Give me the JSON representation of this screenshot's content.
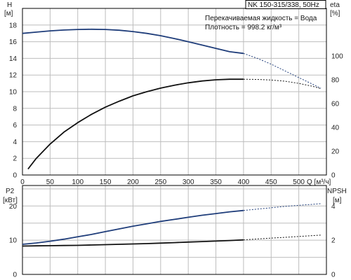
{
  "chart_data": [
    {
      "type": "line",
      "title": "NK 150-315/338, 50Hz",
      "annotations": [
        "Перекачиваемая жидкость = Вода",
        "Плотность = 998.2 кг/м³"
      ],
      "xlabel": "Q [м³/ч]",
      "x_ticks": [
        0,
        50,
        100,
        150,
        200,
        250,
        300,
        350,
        400,
        450,
        500
      ],
      "xlim": [
        0,
        550
      ],
      "y_left": {
        "label_line1": "H",
        "label_line2": "[м]",
        "lim": [
          0,
          20
        ],
        "ticks": [
          0,
          2,
          4,
          6,
          8,
          10,
          12,
          14,
          16,
          18
        ]
      },
      "y_right": {
        "label_line1": "eta",
        "label_line2": "[%]",
        "lim": [
          0,
          140
        ],
        "ticks": [
          0,
          20,
          40,
          60,
          80,
          100
        ]
      },
      "grid": true,
      "series": [
        {
          "axis": "left",
          "color": "#1f3d7a",
          "x": [
            0,
            25,
            50,
            75,
            100,
            125,
            150,
            175,
            200,
            225,
            250,
            275,
            300,
            325,
            350,
            375,
            400
          ],
          "y": [
            17.0,
            17.15,
            17.3,
            17.4,
            17.47,
            17.5,
            17.47,
            17.38,
            17.22,
            17.0,
            16.72,
            16.38,
            16.0,
            15.6,
            15.2,
            14.8,
            14.6
          ],
          "x_ext": [
            400,
            425,
            450,
            475,
            500,
            525,
            540
          ],
          "y_ext": [
            14.6,
            14.0,
            13.3,
            12.5,
            11.7,
            10.9,
            10.4
          ]
        },
        {
          "axis": "right",
          "color": "#111111",
          "x": [
            10,
            25,
            50,
            75,
            100,
            125,
            150,
            175,
            200,
            225,
            250,
            275,
            300,
            325,
            350,
            375,
            400
          ],
          "y": [
            5,
            14,
            26,
            36,
            44,
            51,
            57,
            62,
            66.5,
            70,
            73,
            75.5,
            77.5,
            79,
            80,
            80.5,
            80.5
          ],
          "x_ext": [
            400,
            425,
            450,
            475,
            500,
            525,
            540
          ],
          "y_ext": [
            80.5,
            80.3,
            79.8,
            78.8,
            77,
            74.5,
            72.5
          ]
        }
      ]
    },
    {
      "type": "line",
      "xlim": [
        0,
        550
      ],
      "y_left": {
        "label_line1": "P2",
        "label_line2": "[кВт]",
        "lim": [
          0,
          26
        ],
        "ticks": [
          0,
          10,
          20
        ]
      },
      "y_right": {
        "label_line1": "NPSH",
        "label_line2": "[м]",
        "lim": [
          0,
          5.2
        ],
        "ticks": [
          0,
          2,
          4
        ]
      },
      "grid": true,
      "series": [
        {
          "axis": "left",
          "color": "#1f3d7a",
          "x": [
            0,
            25,
            50,
            75,
            100,
            125,
            150,
            175,
            200,
            225,
            250,
            275,
            300,
            325,
            350,
            375,
            400
          ],
          "y": [
            8.8,
            9.2,
            9.7,
            10.3,
            11.0,
            11.7,
            12.5,
            13.3,
            14.1,
            14.8,
            15.5,
            16.1,
            16.7,
            17.3,
            17.8,
            18.3,
            18.7
          ],
          "x_ext": [
            400,
            425,
            450,
            475,
            500,
            525,
            540
          ],
          "y_ext": [
            18.7,
            19.1,
            19.5,
            19.9,
            20.2,
            20.5,
            20.7
          ]
        },
        {
          "axis": "left",
          "color": "#111111",
          "x": [
            0,
            25,
            50,
            75,
            100,
            125,
            150,
            175,
            200,
            225,
            250,
            275,
            300,
            325,
            350,
            375,
            400
          ],
          "y": [
            8.3,
            8.35,
            8.4,
            8.45,
            8.5,
            8.6,
            8.7,
            8.8,
            8.9,
            9.0,
            9.15,
            9.3,
            9.45,
            9.6,
            9.75,
            9.9,
            10.1
          ],
          "x_ext": [
            400,
            425,
            450,
            475,
            500,
            525,
            540
          ],
          "y_ext": [
            10.1,
            10.35,
            10.6,
            10.85,
            11.1,
            11.35,
            11.5
          ]
        }
      ]
    }
  ]
}
